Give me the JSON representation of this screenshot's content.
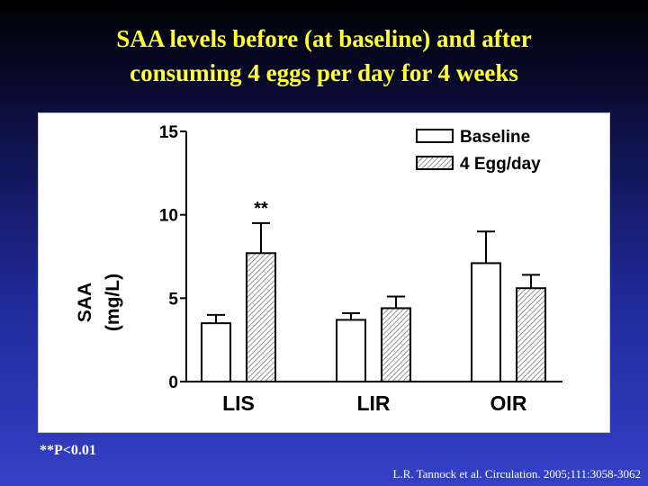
{
  "slide": {
    "title_line1": "SAA levels before (at baseline) and after",
    "title_line2": "consuming 4 eggs per day for 4 weeks",
    "footnote": "**P<0.01",
    "citation": "L.R. Tannock et al. Circulation. 2005;111:3058-3062"
  },
  "chart_data": {
    "type": "bar",
    "categories": [
      "LIS",
      "LIR",
      "OIR"
    ],
    "series": [
      {
        "name": "Baseline",
        "values": [
          3.5,
          3.7,
          7.1
        ],
        "errors": [
          0.5,
          0.4,
          1.9
        ],
        "fill": "#ffffff"
      },
      {
        "name": "4 Egg/day",
        "values": [
          7.7,
          4.4,
          5.6
        ],
        "errors": [
          1.8,
          0.7,
          0.8
        ],
        "fill": "hatched"
      }
    ],
    "annotations": [
      {
        "category": "LIS",
        "series": "4 Egg/day",
        "text": "**"
      }
    ],
    "ylabel_line1": "SAA",
    "ylabel_line2": "(mg/L)",
    "ylim": [
      0,
      15
    ],
    "yticks": [
      0,
      5,
      10,
      15
    ],
    "legend_position": "top-right",
    "grid": false
  }
}
